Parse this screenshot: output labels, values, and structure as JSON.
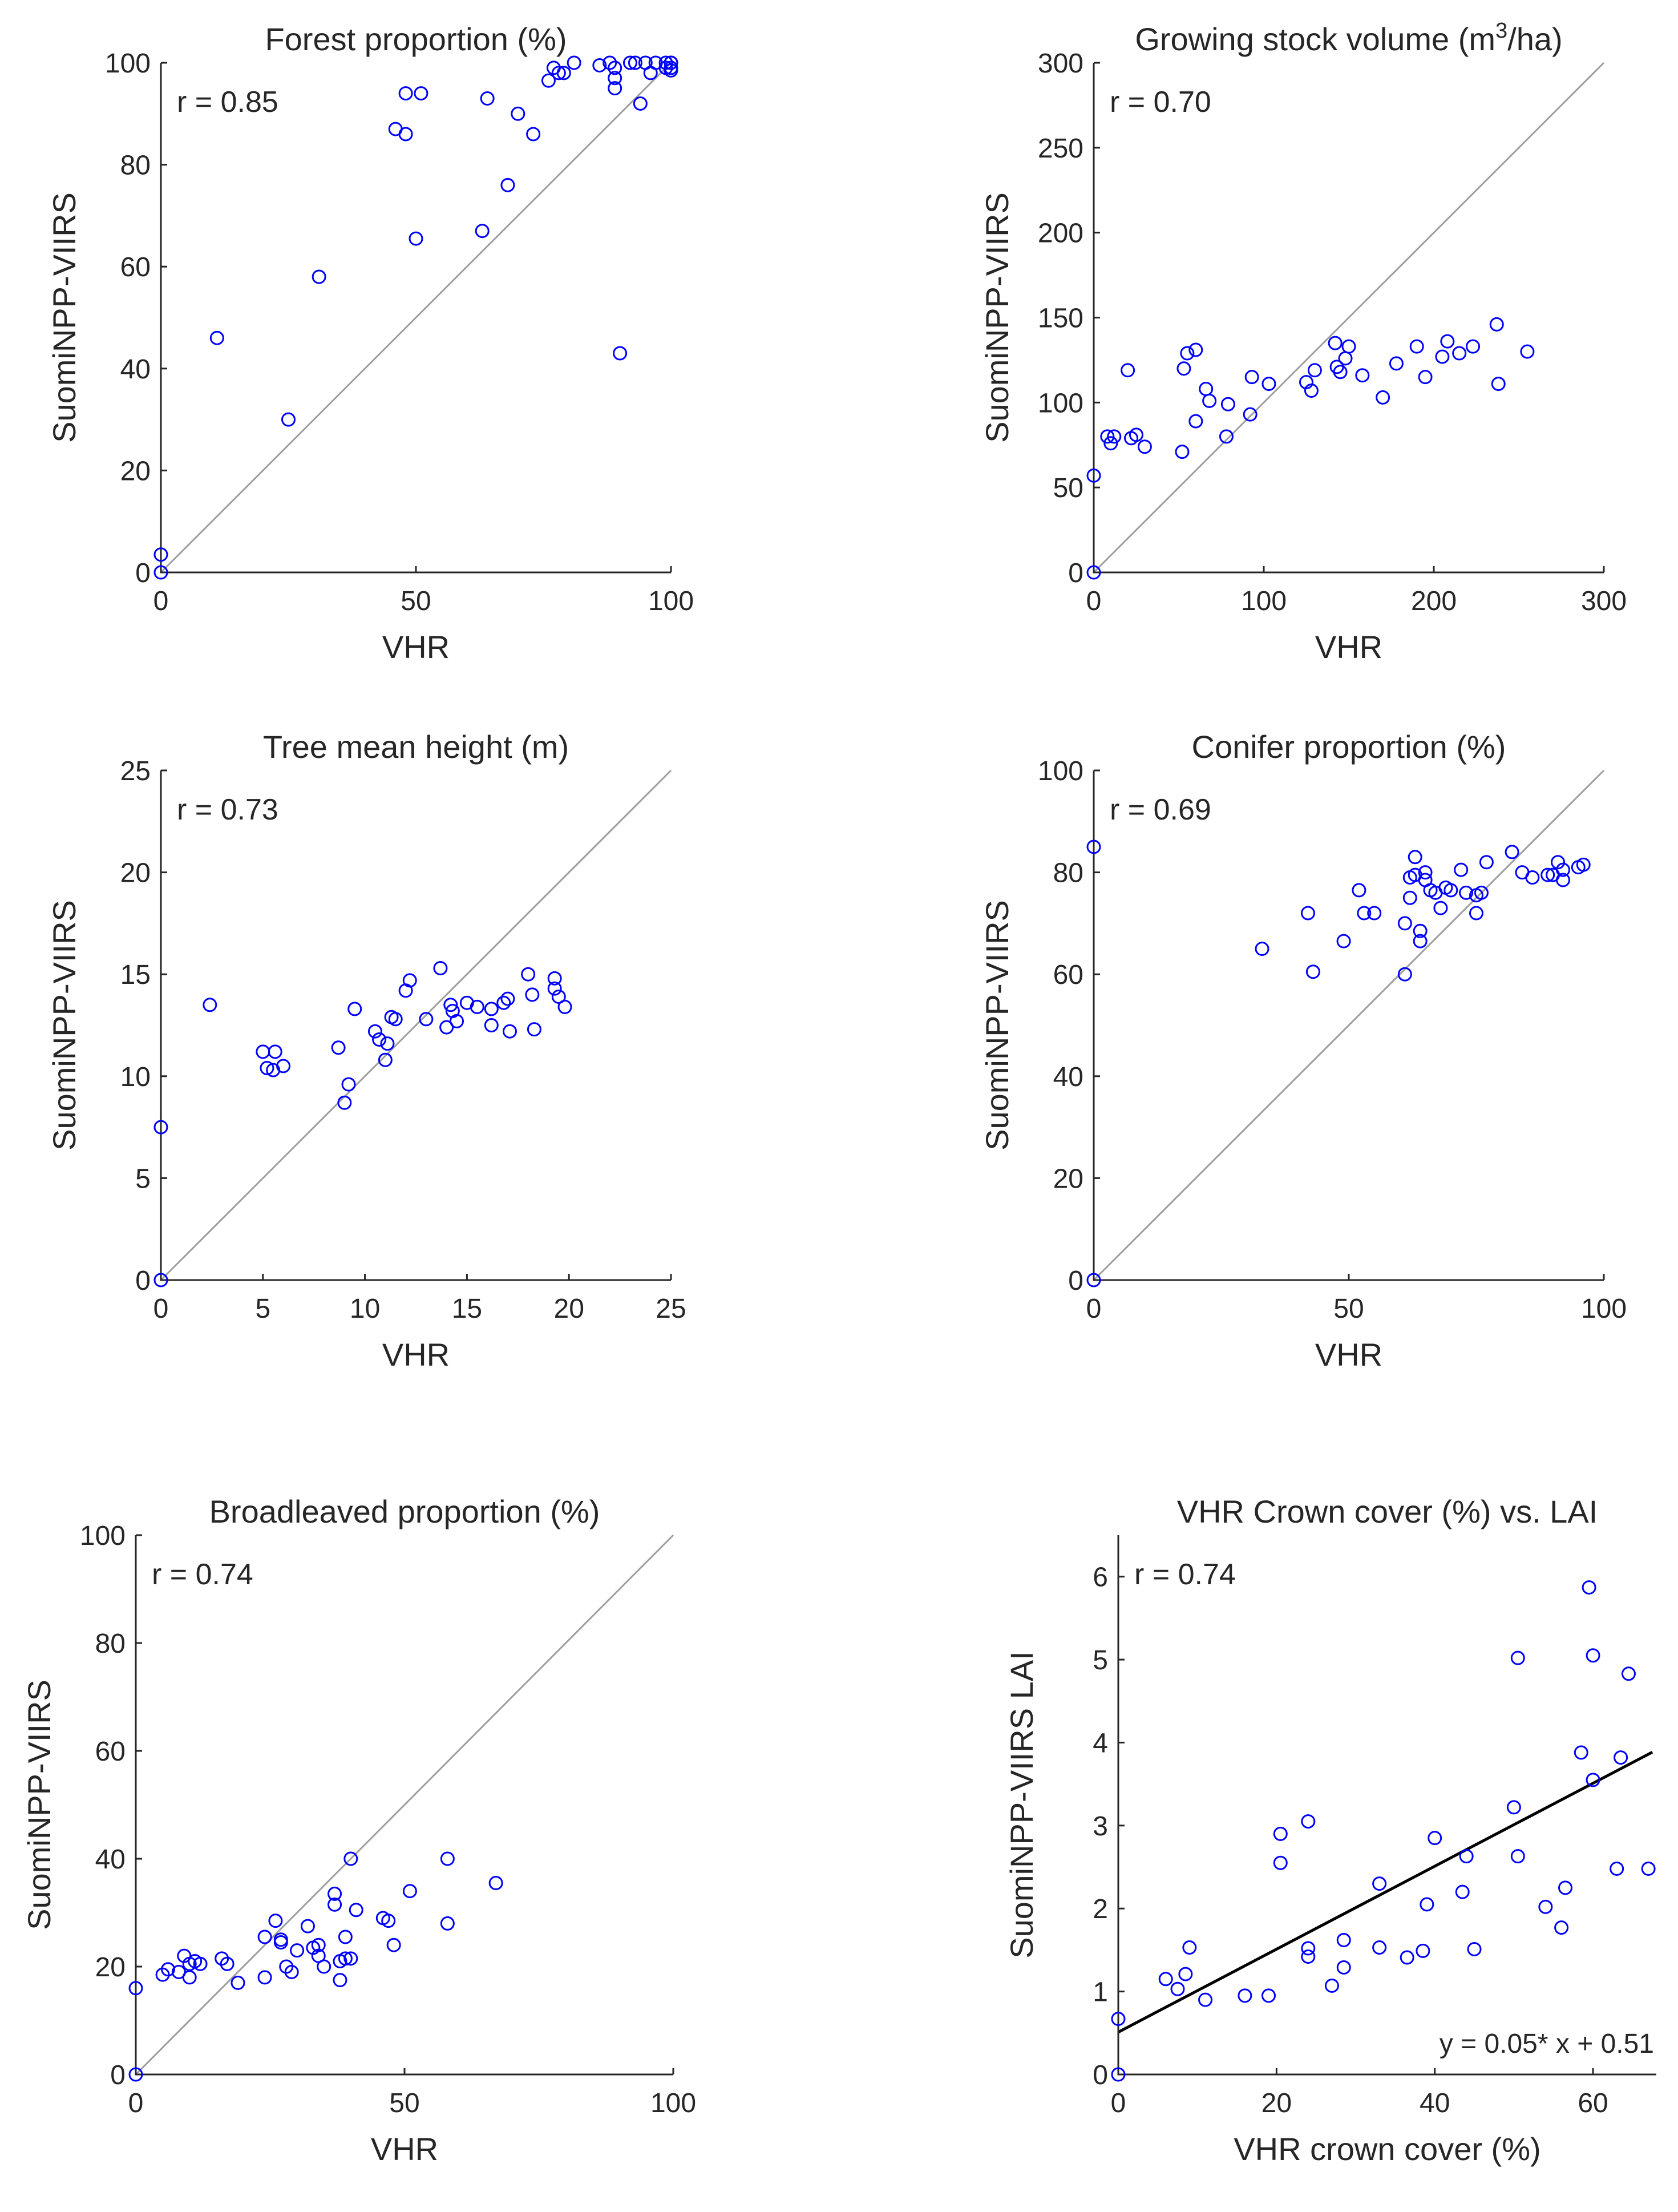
{
  "figure": {
    "marker_color": "#0000ff",
    "identity_line_color": "#9e9e9e",
    "fit_line_color": "#000000",
    "text_color": "#262626"
  },
  "chart_data": [
    {
      "type": "scatter",
      "title": "Forest proportion (%)",
      "xlabel": "VHR",
      "ylabel": "SuomiNPP-VIIRS",
      "xlim": [
        0,
        100
      ],
      "ylim": [
        0,
        100
      ],
      "xticks": [
        "0",
        "50",
        "100"
      ],
      "yticks": [
        "0",
        "20",
        "40",
        "60",
        "80",
        "100"
      ],
      "r_label": "r = 0.85",
      "identity_line": true,
      "x": [
        0,
        0,
        11,
        25,
        31,
        46,
        48,
        48,
        50,
        51,
        63,
        64,
        68,
        70,
        73,
        76,
        77,
        78,
        79,
        81,
        86,
        88,
        89,
        89,
        89,
        90,
        92,
        93,
        94,
        95,
        96,
        97,
        99,
        100,
        100,
        100,
        100,
        99
      ],
      "y": [
        0,
        3.5,
        46,
        30,
        58,
        87,
        86,
        94,
        65.5,
        94,
        67,
        93,
        76,
        90,
        86,
        96.5,
        99,
        98,
        98,
        100,
        99.5,
        100,
        99,
        97,
        95,
        43,
        100,
        100,
        92,
        100,
        98,
        100,
        100,
        100,
        99,
        100,
        98.5,
        99
      ],
      "series": [
        {
          "name": "stands",
          "marker": "circle"
        }
      ]
    },
    {
      "type": "scatter",
      "title": "Growing stock volume (m",
      "title_sup": "3",
      "title_end": "/ha)",
      "xlabel": "VHR",
      "ylabel": "SuomiNPP-VIIRS",
      "xlim": [
        0,
        300
      ],
      "ylim": [
        0,
        300
      ],
      "xticks": [
        "0",
        "100",
        "200",
        "300"
      ],
      "yticks": [
        "0",
        "50",
        "100",
        "150",
        "200",
        "250",
        "300"
      ],
      "r_label": "r = 0.70",
      "identity_line": true,
      "x": [
        0,
        0,
        8,
        10,
        12,
        20,
        22,
        25,
        30,
        52,
        53,
        55,
        60,
        60,
        66,
        68,
        78,
        79,
        92,
        93,
        103,
        125,
        128,
        130,
        142,
        143,
        145,
        148,
        150,
        158,
        170,
        178,
        190,
        195,
        205,
        208,
        215,
        223,
        237,
        238,
        255
      ],
      "y": [
        0,
        57,
        80,
        76,
        80,
        119,
        79,
        81,
        74,
        71,
        120,
        129,
        131,
        89,
        108,
        101,
        80,
        99,
        93,
        115,
        111,
        112,
        107,
        119,
        135,
        121,
        118,
        126,
        133,
        116,
        103,
        123,
        133,
        115,
        127,
        136,
        129,
        133,
        146,
        111,
        130
      ],
      "series": [
        {
          "name": "stands",
          "marker": "circle"
        }
      ]
    },
    {
      "type": "scatter",
      "title": "Tree mean height (m)",
      "xlabel": "VHR",
      "ylabel": "SuomiNPP-VIIRS",
      "xlim": [
        0,
        25
      ],
      "ylim": [
        0,
        25
      ],
      "xticks": [
        "0",
        "5",
        "10",
        "15",
        "20",
        "25"
      ],
      "yticks": [
        "0",
        "5",
        "10",
        "15",
        "20",
        "25"
      ],
      "r_label": "r = 0.73",
      "identity_line": true,
      "x": [
        0,
        0,
        2.4,
        5,
        5.2,
        5.5,
        5.6,
        6,
        8.7,
        9,
        9.2,
        9.5,
        10.5,
        10.7,
        11,
        11.1,
        11.3,
        11.5,
        12,
        12.2,
        13,
        13.7,
        14,
        14.2,
        14.3,
        14.5,
        15,
        15.5,
        16.2,
        16.2,
        16.8,
        17,
        17.1,
        18,
        18.2,
        18.3,
        19.3,
        19.3,
        19.5,
        19.8
      ],
      "y": [
        0,
        7.5,
        13.5,
        11.2,
        10.4,
        10.3,
        11.2,
        10.5,
        11.4,
        8.7,
        9.6,
        13.3,
        12.2,
        11.8,
        10.8,
        11.6,
        12.9,
        12.8,
        14.2,
        14.7,
        12.8,
        15.3,
        12.4,
        13.5,
        13.2,
        12.7,
        13.6,
        13.4,
        13.3,
        12.5,
        13.6,
        13.8,
        12.2,
        15,
        14,
        12.3,
        14.3,
        14.8,
        13.9,
        13.4
      ],
      "series": [
        {
          "name": "stands",
          "marker": "circle"
        }
      ]
    },
    {
      "type": "scatter",
      "title": "Conifer proportion (%)",
      "xlabel": "VHR",
      "ylabel": "SuomiNPP-VIIRS",
      "xlim": [
        0,
        100
      ],
      "ylim": [
        0,
        100
      ],
      "xticks": [
        "0",
        "50",
        "100"
      ],
      "yticks": [
        "0",
        "20",
        "40",
        "60",
        "80",
        "100"
      ],
      "r_label": "r = 0.69",
      "identity_line": true,
      "x": [
        0,
        0,
        33,
        42,
        43,
        49,
        52,
        53,
        55,
        61,
        61,
        62,
        62,
        63,
        63,
        64,
        64,
        65,
        65,
        66,
        67,
        68,
        69,
        70,
        72,
        73,
        75,
        75,
        76,
        77,
        82,
        84,
        86,
        89,
        90,
        91,
        92,
        92,
        95,
        96
      ],
      "y": [
        0,
        85,
        65,
        72,
        60.5,
        66.5,
        76.5,
        72,
        72,
        70,
        60,
        79,
        75,
        83,
        79.5,
        66.5,
        68.5,
        78.5,
        80,
        76.5,
        76,
        73,
        77,
        76.5,
        80.5,
        76,
        72,
        75.5,
        76,
        82,
        84,
        80,
        79,
        79.5,
        79.5,
        82,
        78.5,
        80.5,
        81,
        81.5
      ],
      "series": [
        {
          "name": "stands",
          "marker": "circle"
        }
      ]
    },
    {
      "type": "scatter",
      "title": "Broadleaved proportion (%)",
      "xlabel": "VHR",
      "ylabel": "SuomiNPP-VIIRS",
      "xlim": [
        0,
        100
      ],
      "ylim": [
        0,
        100
      ],
      "xticks": [
        "0",
        "50",
        "100"
      ],
      "yticks": [
        "0",
        "20",
        "40",
        "60",
        "80",
        "100"
      ],
      "r_label": "r = 0.74",
      "identity_line": true,
      "x": [
        0,
        0,
        5,
        6,
        8,
        9,
        10,
        10,
        11,
        12,
        16,
        17,
        19,
        24,
        24,
        26,
        27,
        27,
        28,
        29,
        30,
        32,
        33,
        34,
        34,
        35,
        37,
        37,
        38,
        38,
        39,
        39,
        40,
        40,
        41,
        46,
        47,
        48,
        51,
        58,
        58,
        67
      ],
      "y": [
        0,
        16,
        18.5,
        19.5,
        19,
        22,
        18,
        20.5,
        21,
        20.5,
        21.5,
        20.5,
        17,
        18,
        25.5,
        28.5,
        24.5,
        25,
        20,
        19,
        23,
        27.5,
        23.5,
        24,
        22,
        20,
        31.5,
        33.5,
        21,
        17.5,
        21.5,
        25.5,
        21.5,
        40,
        30.5,
        29,
        28.5,
        24,
        34,
        40,
        28,
        35.5
      ],
      "series": [
        {
          "name": "stands",
          "marker": "circle"
        }
      ]
    },
    {
      "type": "scatter",
      "title": "VHR Crown cover (%) vs. LAI",
      "xlabel": "VHR crown cover (%)",
      "ylabel": "SuomiNPP-VIIRS LAI",
      "xlim": [
        0,
        68
      ],
      "ylim": [
        0,
        6.5
      ],
      "xticks": [
        "0",
        "20",
        "40",
        "60"
      ],
      "yticks": [
        "0",
        "1",
        "2",
        "3",
        "4",
        "5",
        "6"
      ],
      "r_label": "r = 0.74",
      "identity_line": false,
      "fit": {
        "slope": 0.05,
        "intercept": 0.51,
        "label": "y = 0.05* x + 0.51"
      },
      "x": [
        0,
        0,
        6,
        7.5,
        8.5,
        9,
        11,
        16,
        19,
        20.5,
        20.5,
        24,
        24,
        24,
        27,
        28.5,
        28.5,
        33,
        33,
        36.5,
        38.5,
        39,
        40,
        43.5,
        44,
        45,
        50,
        50.5,
        50.5,
        54,
        56,
        56.5,
        58.5,
        59.5,
        60,
        60,
        63,
        63.5,
        64.5,
        67
      ],
      "y": [
        0,
        0.67,
        1.15,
        1.03,
        1.21,
        1.53,
        0.9,
        0.95,
        0.95,
        2.9,
        2.55,
        1.42,
        1.52,
        3.05,
        1.07,
        1.29,
        1.62,
        2.3,
        1.53,
        1.41,
        1.49,
        2.05,
        2.85,
        2.2,
        2.63,
        1.51,
        3.22,
        2.63,
        5.02,
        2.02,
        1.77,
        2.25,
        3.88,
        5.87,
        5.05,
        3.55,
        2.48,
        3.82,
        4.83,
        2.48
      ],
      "series": [
        {
          "name": "stands",
          "marker": "circle"
        }
      ]
    }
  ]
}
